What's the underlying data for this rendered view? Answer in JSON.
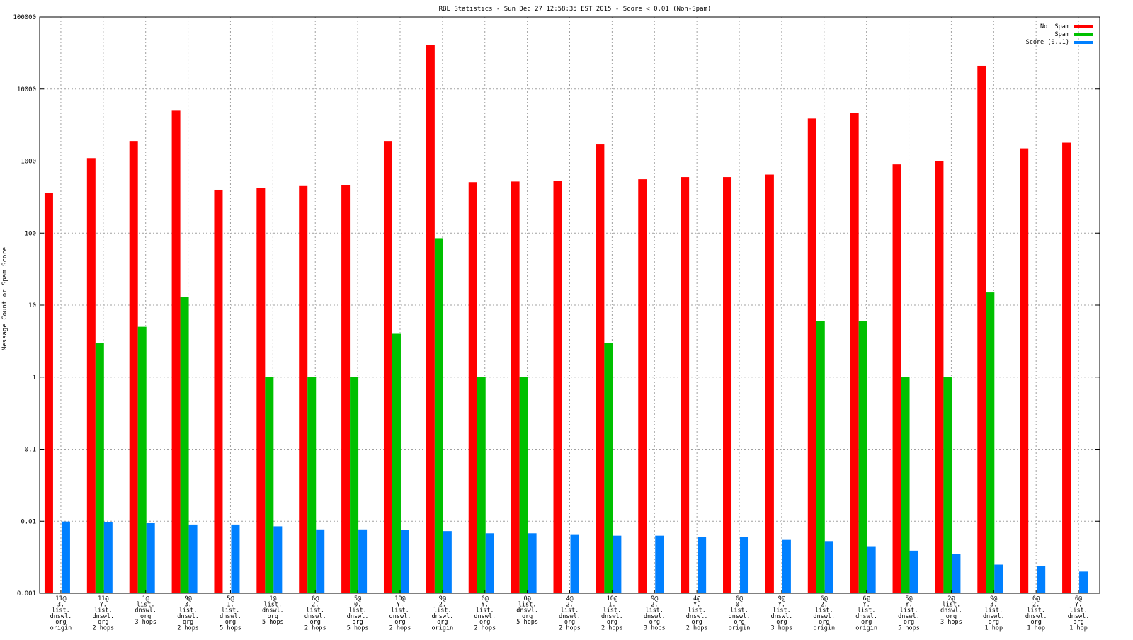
{
  "chart_data": {
    "type": "bar",
    "title": "RBL Statistics - Sun Dec 27 12:58:35 EST 2015 - Score < 0.01 (Non-Spam)",
    "xlabel": "",
    "ylabel": "Message Count or Spam Score",
    "yscale": "log",
    "ylim": [
      0.001,
      100000
    ],
    "yticks": [
      "0.001",
      "0.01",
      "0.1",
      "1",
      "10",
      "100",
      "1000",
      "10000",
      "100000"
    ],
    "grid": true,
    "legend_position": "top-right",
    "categories": [
      "11@ 3. list. dnswl. org origin",
      "11@ Y. list. dnswl. org 2 hops",
      "1@ list. dnswl. org 3 hops",
      "9@ 3. list. dnswl. org 2 hops",
      "5@ 1. list. dnswl. org 5 hops",
      "1@ list. dnswl. org 5 hops",
      "6@ 2. list. dnswl. org 2 hops",
      "5@ 0. list. dnswl. org 5 hops",
      "10@ Y. list. dnswl. org 2 hops",
      "9@ 2. list. dnswl. org origin",
      "6@ Y. list. dnswl. org 2 hops",
      "0@ list. dnswl. org 5 hops",
      "4@ 2. list. dnswl. org 2 hops",
      "10@ 1. list. dnswl. org 2 hops",
      "9@ 2. list. dnswl. org 3 hops",
      "4@ Y. list. dnswl. org 2 hops",
      "6@ 0. list. dnswl. org origin",
      "9@ Y. list. dnswl. org 3 hops",
      "6@ 2. list. dnswl. org origin",
      "6@ Y. list. dnswl. org origin",
      "5@ Y. list. dnswl. org 5 hops",
      "2@ list. dnswl. org 3 hops",
      "9@ 3. list. dnswl. org 1 hop",
      "6@ 2. list. dnswl. org 1 hop",
      "6@ Y. list. dnswl. org 1 hop"
    ],
    "category_lines": [
      [
        "11@",
        "3.",
        "list.",
        "dnswl.",
        "org",
        "origin"
      ],
      [
        "11@",
        "Y.",
        "list.",
        "dnswl.",
        "org",
        "2 hops"
      ],
      [
        "1@",
        "list.",
        "dnswl.",
        "org",
        "3 hops"
      ],
      [
        "9@",
        "3.",
        "list.",
        "dnswl.",
        "org",
        "2 hops"
      ],
      [
        "5@",
        "1.",
        "list.",
        "dnswl.",
        "org",
        "5 hops"
      ],
      [
        "1@",
        "list.",
        "dnswl.",
        "org",
        "5 hops"
      ],
      [
        "6@",
        "2.",
        "list.",
        "dnswl.",
        "org",
        "2 hops"
      ],
      [
        "5@",
        "0.",
        "list.",
        "dnswl.",
        "org",
        "5 hops"
      ],
      [
        "10@",
        "Y.",
        "list.",
        "dnswl.",
        "org",
        "2 hops"
      ],
      [
        "9@",
        "2.",
        "list.",
        "dnswl.",
        "org",
        "origin"
      ],
      [
        "6@",
        "Y.",
        "list.",
        "dnswl.",
        "org",
        "2 hops"
      ],
      [
        "0@",
        "list.",
        "dnswl.",
        "org",
        "5 hops"
      ],
      [
        "4@",
        "2.",
        "list.",
        "dnswl.",
        "org",
        "2 hops"
      ],
      [
        "10@",
        "1.",
        "list.",
        "dnswl.",
        "org",
        "2 hops"
      ],
      [
        "9@",
        "2.",
        "list.",
        "dnswl.",
        "org",
        "3 hops"
      ],
      [
        "4@",
        "Y.",
        "list.",
        "dnswl.",
        "org",
        "2 hops"
      ],
      [
        "6@",
        "0.",
        "list.",
        "dnswl.",
        "org",
        "origin"
      ],
      [
        "9@",
        "Y.",
        "list.",
        "dnswl.",
        "org",
        "3 hops"
      ],
      [
        "6@",
        "2.",
        "list.",
        "dnswl.",
        "org",
        "origin"
      ],
      [
        "6@",
        "Y.",
        "list.",
        "dnswl.",
        "org",
        "origin"
      ],
      [
        "5@",
        "Y.",
        "list.",
        "dnswl.",
        "org",
        "5 hops"
      ],
      [
        "2@",
        "list.",
        "dnswl.",
        "org",
        "3 hops"
      ],
      [
        "9@",
        "3.",
        "list.",
        "dnswl.",
        "org",
        "1 hop"
      ],
      [
        "6@",
        "2.",
        "list.",
        "dnswl.",
        "org",
        "1 hop"
      ],
      [
        "6@",
        "Y.",
        "list.",
        "dnswl.",
        "org",
        "1 hop"
      ]
    ],
    "series": [
      {
        "name": "Not Spam",
        "color": "#ff0000",
        "values": [
          360,
          1100,
          1900,
          5000,
          400,
          420,
          450,
          460,
          1900,
          41000,
          510,
          520,
          530,
          1700,
          560,
          600,
          600,
          650,
          3900,
          4700,
          900,
          1000,
          21000,
          1500,
          1800
        ]
      },
      {
        "name": "Spam",
        "color": "#00c000",
        "values": [
          null,
          3,
          5,
          13,
          null,
          1,
          1,
          1,
          4,
          85,
          1,
          1,
          null,
          3,
          null,
          null,
          null,
          null,
          6,
          6,
          1,
          1,
          15,
          null,
          null
        ]
      },
      {
        "name": "Score (0..1)",
        "color": "#0080ff",
        "values": [
          0.0099,
          0.0098,
          0.0094,
          0.009,
          0.009,
          0.0085,
          0.0077,
          0.0077,
          0.0075,
          0.0073,
          0.0068,
          0.0068,
          0.0066,
          0.0063,
          0.0063,
          0.006,
          0.006,
          0.0055,
          0.0053,
          0.0045,
          0.0039,
          0.0035,
          0.0025,
          0.0024,
          0.002
        ]
      }
    ]
  }
}
